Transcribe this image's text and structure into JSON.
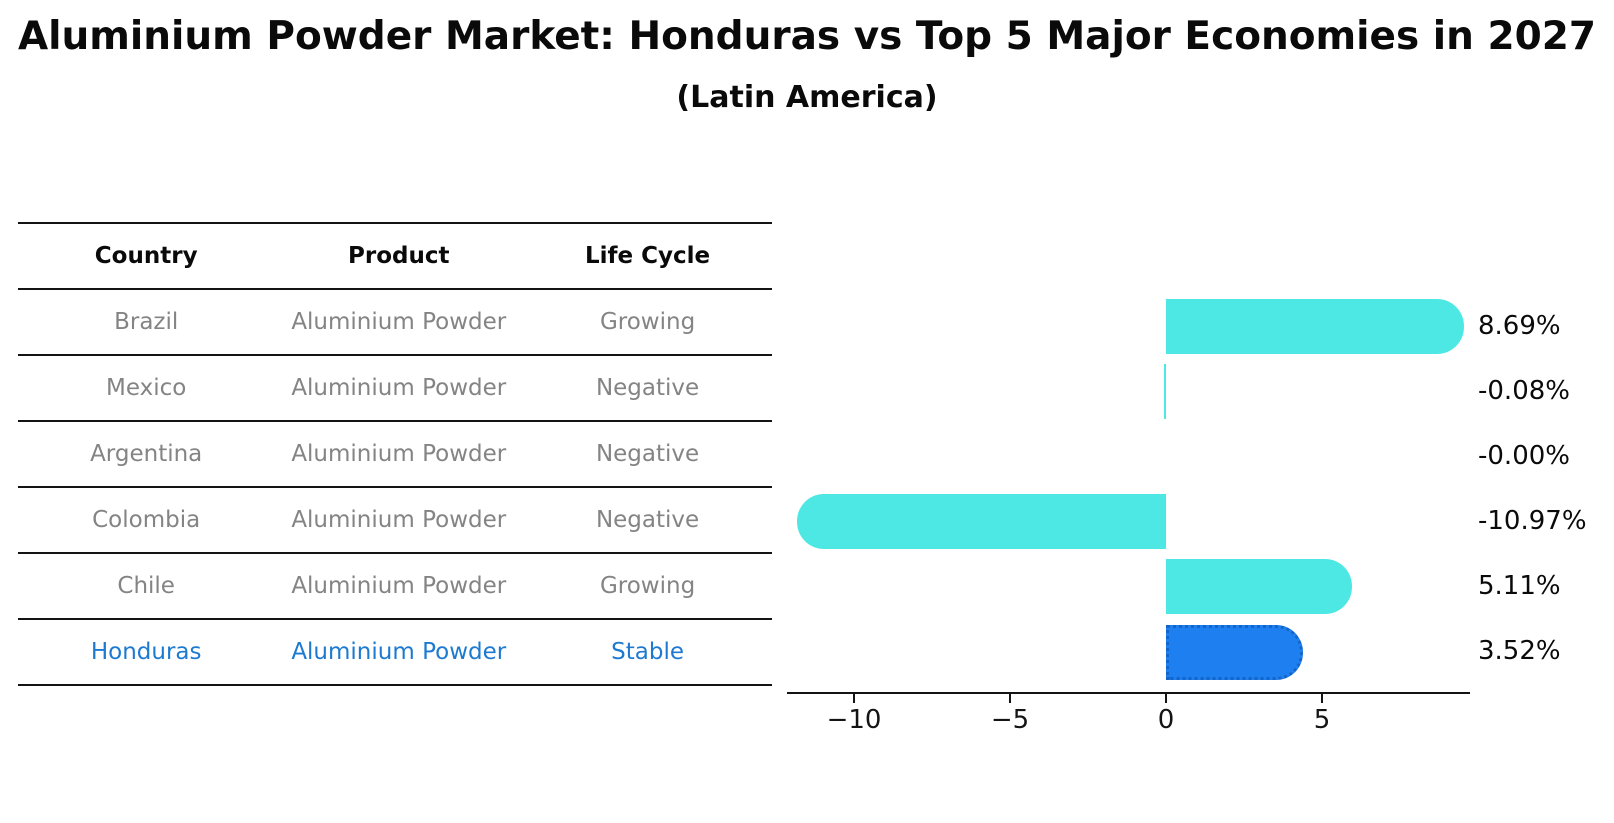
{
  "title": "Aluminium Powder Market: Honduras vs Top 5 Major Economies in 2027",
  "subtitle": "(Latin America)",
  "table": {
    "headers": [
      "Country",
      "Product",
      "Life Cycle"
    ],
    "rows": [
      {
        "country": "Brazil",
        "product": "Aluminium Powder",
        "life_cycle": "Growing",
        "highlight": false
      },
      {
        "country": "Mexico",
        "product": "Aluminium Powder",
        "life_cycle": "Negative",
        "highlight": false
      },
      {
        "country": "Argentina",
        "product": "Aluminium Powder",
        "life_cycle": "Negative",
        "highlight": false
      },
      {
        "country": "Colombia",
        "product": "Aluminium Powder",
        "life_cycle": "Negative",
        "highlight": false
      },
      {
        "country": "Chile",
        "product": "Aluminium Powder",
        "life_cycle": "Growing",
        "highlight": false
      },
      {
        "country": "Honduras",
        "product": "Aluminium Powder",
        "life_cycle": "Stable",
        "highlight": true
      }
    ]
  },
  "chart_data": {
    "type": "bar",
    "orientation": "horizontal",
    "categories": [
      "Brazil",
      "Mexico",
      "Argentina",
      "Colombia",
      "Chile",
      "Honduras"
    ],
    "values": [
      8.69,
      -0.08,
      -0.0,
      -10.97,
      5.11,
      3.52
    ],
    "value_labels": [
      "8.69%",
      "-0.08%",
      "-0.00%",
      "-10.97%",
      "5.11%",
      "3.52%"
    ],
    "x_ticks": [
      {
        "label": "−10",
        "value": -10
      },
      {
        "label": "−5",
        "value": -5
      },
      {
        "label": "0",
        "value": 0
      },
      {
        "label": "5",
        "value": 5
      }
    ],
    "xlim": [
      -12.1,
      9.7
    ],
    "grid": false,
    "legend": false,
    "bar_color": "#4de8e4",
    "highlight_color": "#1e80f0",
    "highlight_border_color": "#1565c8",
    "highlight_index": 5
  },
  "colors": {
    "text_primary": "#0a0a0a",
    "text_muted": "#848484",
    "text_highlight": "#1e7ad0",
    "axis": "#141414"
  }
}
